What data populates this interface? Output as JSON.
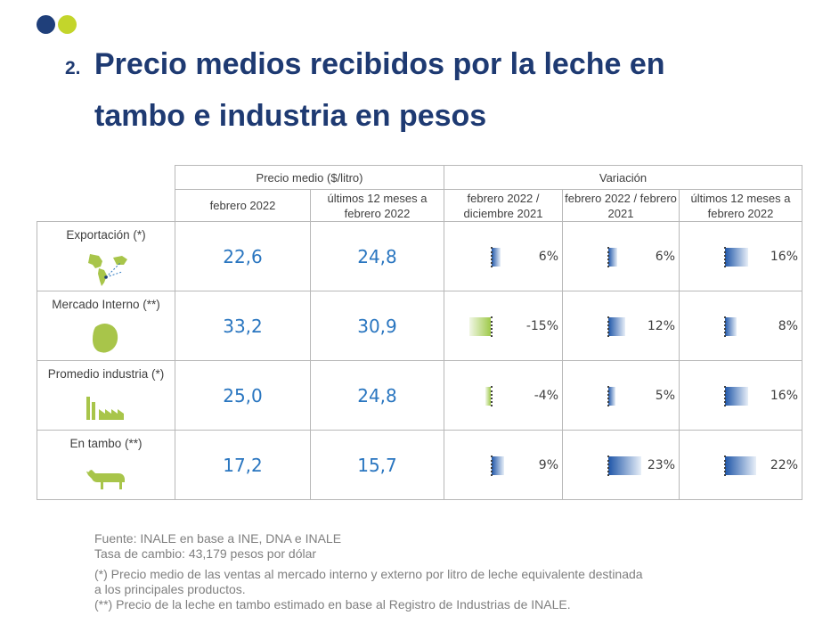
{
  "title": {
    "number": "2.",
    "line1": "Precio medios recibidos por la leche en",
    "line2": "tambo e industria en pesos"
  },
  "table": {
    "group_price": "Precio medio ($/litro)",
    "group_variation": "Variación",
    "col_headers": [
      "febrero 2022",
      "últimos 12 meses a febrero 2022",
      "febrero 2022 / diciembre 2021",
      "febrero 2022 / febrero 2021",
      "últimos 12 meses a febrero 2022"
    ],
    "rows": [
      {
        "label": "Exportación (*)",
        "icon": "world-map-icon",
        "price_feb": "22,6",
        "price_12m": "24,8",
        "var": [
          {
            "text": "6%",
            "value": 6
          },
          {
            "text": "6%",
            "value": 6
          },
          {
            "text": "16%",
            "value": 16
          }
        ]
      },
      {
        "label": "Mercado Interno (**)",
        "icon": "uruguay-map-icon",
        "price_feb": "33,2",
        "price_12m": "30,9",
        "var": [
          {
            "text": "-15%",
            "value": -15
          },
          {
            "text": "12%",
            "value": 12
          },
          {
            "text": "8%",
            "value": 8
          }
        ]
      },
      {
        "label": "Promedio industria (*)",
        "icon": "factory-icon",
        "price_feb": "25,0",
        "price_12m": "24,8",
        "var": [
          {
            "text": "-4%",
            "value": -4
          },
          {
            "text": "5%",
            "value": 5
          },
          {
            "text": "16%",
            "value": 16
          }
        ]
      },
      {
        "label": "En tambo (**)",
        "icon": "cow-icon",
        "price_feb": "17,2",
        "price_12m": "15,7",
        "var": [
          {
            "text": "9%",
            "value": 9
          },
          {
            "text": "23%",
            "value": 23
          },
          {
            "text": "22%",
            "value": 22
          }
        ]
      }
    ]
  },
  "notes": {
    "source": "Fuente: INALE en base a INE, DNA e INALE",
    "rate": "Tasa de cambio: 43,179 pesos por dólar",
    "note1_a": "(*) Precio medio de las ventas al mercado interno y externo por litro de leche equivalente destinada",
    "note1_b": "a los principales productos.",
    "note2": "(**) Precio de la leche en tambo estimado en base al Registro de Industrias de INALE."
  },
  "colors": {
    "navy": "#1f3f7a",
    "lime": "#c3d52b",
    "value_blue": "#2a76c0",
    "bar_blue": "#1f56a8",
    "bar_green": "#9fc94a"
  }
}
